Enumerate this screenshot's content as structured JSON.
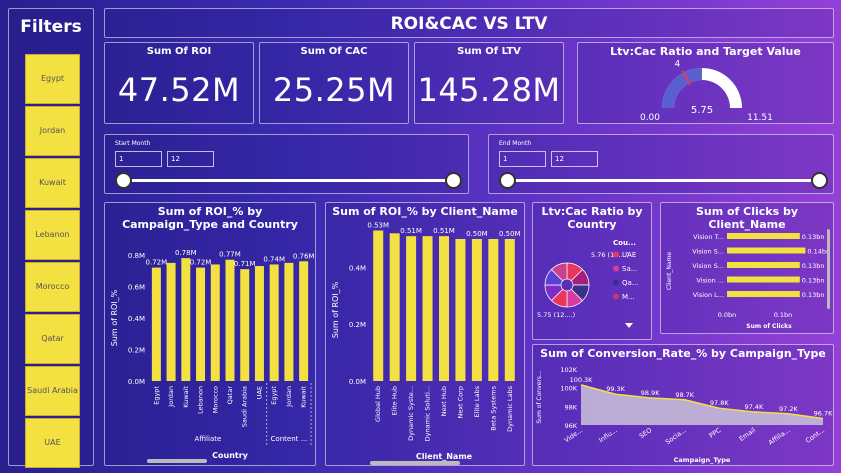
{
  "filters": {
    "title": "Filters",
    "items": [
      "Egypt",
      "Jordan",
      "Kuwait",
      "Lebanon",
      "Morocco",
      "Qatar",
      "Saudi Arabia",
      "UAE"
    ]
  },
  "dashboard_title": "ROI&CAC VS LTV",
  "kpis": [
    {
      "label": "Sum Of ROI",
      "value": "47.52M"
    },
    {
      "label": "Sum Of CAC",
      "value": "25.25M"
    },
    {
      "label": "Sum Of LTV",
      "value": "145.28M"
    }
  ],
  "gauge": {
    "title": "Ltv:Cac Ratio and Target Value",
    "min": 0,
    "min_label": "0.00",
    "max": 11.51,
    "max_label": "11.51",
    "value": 5.75,
    "value_label": "5.75",
    "target": 4,
    "target_label": "4"
  },
  "start_month": {
    "label": "Start Month",
    "from": "1",
    "to": "12"
  },
  "end_month": {
    "label": "End Month",
    "from": "1",
    "to": "12"
  },
  "colors": {
    "bar": "#f2e140",
    "gauge_fill": "#5a5fd0",
    "gauge_bg": "#ffffff",
    "area": "#cbc3d9"
  },
  "chart_data": [
    {
      "type": "bar",
      "title": "Sum of ROI_% by Campaign_Type and Country",
      "ylabel": "Sum of ROI_%",
      "xlabel": "Country",
      "ylim": [
        0,
        0.8
      ],
      "yticks": [
        "0.0M",
        "0.2M",
        "0.4M",
        "0.6M",
        "0.8M"
      ],
      "categories": [
        "Egypt",
        "Jordan",
        "Kuwait",
        "Lebanon",
        "Morocco",
        "Qatar",
        "Saudi Arabia",
        "UAE",
        "Egypt",
        "Jordan",
        "Kuwait"
      ],
      "values": [
        0.72,
        0.75,
        0.78,
        0.72,
        0.74,
        0.77,
        0.71,
        0.73,
        0.74,
        0.75,
        0.76
      ],
      "data_labels": [
        "0.72M",
        "",
        "0.78M",
        "0.72M",
        "",
        "0.77M",
        "0.71M",
        "",
        "0.74M",
        "",
        "0.76M"
      ],
      "groups": [
        {
          "name": "Affiliate",
          "count": 8
        },
        {
          "name": "Content ...",
          "count": 3
        }
      ]
    },
    {
      "type": "bar",
      "title": "Sum of ROI_% by Client_Name",
      "ylabel": "Sum of ROI_%",
      "xlabel": "Client_Name",
      "ylim": [
        0,
        0.5
      ],
      "yticks": [
        "0.0M",
        "0.2M",
        "0.4M"
      ],
      "categories": [
        "Global Hub",
        "Elite Hub",
        "Dynamic Syste...",
        "Dynamic Soluti...",
        "Next Hub",
        "Next Corp",
        "Elite Labs",
        "Beta Systems",
        "Dynamic Labs"
      ],
      "values": [
        0.53,
        0.52,
        0.51,
        0.51,
        0.51,
        0.5,
        0.5,
        0.5,
        0.5
      ],
      "data_labels": [
        "0.53M",
        "",
        "0.51M",
        "",
        "0.51M",
        "",
        "0.50M",
        "",
        "0.50M"
      ]
    },
    {
      "type": "pie",
      "title": "Ltv:Cac Ratio by Country",
      "legend_title": "Cou...",
      "legend": [
        "UAE",
        "Sa...",
        "Qa...",
        "M..."
      ],
      "slices": [
        5.76,
        5.74,
        5.75,
        5.73,
        5.76,
        5.75,
        5.74,
        5.75
      ],
      "slice_colors": [
        "#e8365e",
        "#a61f7a",
        "#3a2f8a",
        "#d83aa0",
        "#e8365e",
        "#7d2cc9",
        "#5b3fd6",
        "#c9408c"
      ],
      "data_labels": [
        "5.76 (12....)",
        "5.75 (12....)"
      ]
    },
    {
      "type": "bar",
      "orientation": "horizontal",
      "title": "Sum of Clicks by Client_Name",
      "ylabel": "Client_Name",
      "xlabel": "Sum of Clicks",
      "xticks": [
        "0.0bn",
        "0.1bn"
      ],
      "xlim": [
        0,
        0.15
      ],
      "categories": [
        "Vision T...",
        "Vision S...",
        "Vision S...",
        "Vision ...",
        "Vision L..."
      ],
      "values": [
        0.13,
        0.14,
        0.13,
        0.13,
        0.13
      ],
      "data_labels": [
        "0.13bn",
        "0.14bn",
        "0.13bn",
        "0.13bn",
        "0.13bn"
      ]
    },
    {
      "type": "area",
      "title": "Sum of Conversion_Rate_% by Campaign_Type",
      "ylabel": "Sum of Convers...",
      "xlabel": "Campaign_Type",
      "ylim": [
        96,
        102
      ],
      "yticks": [
        "96K",
        "98K",
        "100K",
        "102K"
      ],
      "categories": [
        "Vide...",
        "Influ...",
        "SEO",
        "Socia...",
        "PPC",
        "Email",
        "Affilia...",
        "Cont..."
      ],
      "values": [
        100.3,
        99.3,
        98.9,
        98.7,
        97.8,
        97.4,
        97.2,
        96.7
      ],
      "data_labels": [
        "100.3K",
        "99.3K",
        "98.9K",
        "98.7K",
        "97.8K",
        "97.4K",
        "97.2K",
        "96.7K"
      ]
    }
  ]
}
